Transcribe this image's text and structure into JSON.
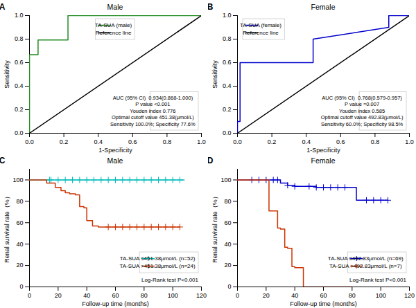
{
  "chart_data": [
    {
      "type": "line",
      "title": "Male",
      "annotations": [
        "A",
        "AUC (95% CI)  0.934(0.868-1.000)",
        "P value <0.001",
        "Youden index 0.776",
        "Optimal cutoff value 451.38(μmol/L)",
        "Sensitivity 100.0%; Specificity 77.6%"
      ],
      "xlabel": "1-Specificity",
      "ylabel": "Sensitivity",
      "xlim": [
        0,
        1
      ],
      "ylim": [
        0,
        1
      ],
      "xticks": [
        {
          "value": 0,
          "label": "0.0"
        },
        0.2,
        0.4,
        0.6,
        0.8,
        {
          "value": 1,
          "label": "1.0"
        }
      ],
      "yticks": [
        {
          "value": 0,
          "label": "0.0"
        },
        0.2,
        0.4,
        0.6,
        0.8,
        {
          "value": 1,
          "label": "1.0"
        }
      ],
      "grid": false,
      "legend": "upper center",
      "series": [
        {
          "name": "TA-SUA (male)",
          "color": "#228B22",
          "x": [
            0.0,
            0.0,
            0.0,
            0.05,
            0.05,
            0.224,
            0.224,
            1.0
          ],
          "values": [
            0.0,
            0.333,
            0.667,
            0.667,
            0.792,
            0.792,
            1.0,
            1.0
          ]
        },
        {
          "name": "Reference line",
          "color": "#000000",
          "x": [
            0,
            1
          ],
          "values": [
            0,
            1
          ]
        }
      ]
    },
    {
      "type": "line",
      "title": "Female",
      "annotations": [
        "B",
        "AUC (95% CI)  0.768(0.579-0.957)",
        "P value =0.007",
        "Youden index 0.585",
        "Optimal cutoff value 492.83(μmol/L)",
        "Sensitivity 60.0%; Specificity 98.5%"
      ],
      "xlabel": "1-Specificity",
      "ylabel": "Sensitivity",
      "xlim": [
        0,
        1
      ],
      "ylim": [
        0,
        1
      ],
      "xticks": [
        {
          "value": 0,
          "label": "0.0"
        },
        0.2,
        0.4,
        0.6,
        0.8,
        {
          "value": 1,
          "label": "1.0"
        }
      ],
      "yticks": [
        {
          "value": 0,
          "label": "0.0"
        },
        0.2,
        0.4,
        0.6,
        0.8,
        {
          "value": 1,
          "label": "1.0"
        }
      ],
      "grid": false,
      "legend": "upper left",
      "series": [
        {
          "name": "TA-SUA (female)",
          "color": "#0000CC",
          "x": [
            0.0,
            0.0,
            0.015,
            0.015,
            0.44,
            0.44,
            0.88,
            0.88,
            1.0
          ],
          "values": [
            0.0,
            0.1,
            0.1,
            0.6,
            0.6,
            0.8,
            0.9,
            1.0,
            1.0
          ]
        },
        {
          "name": "Reference line",
          "color": "#000000",
          "x": [
            0,
            1
          ],
          "values": [
            0,
            1
          ]
        }
      ]
    },
    {
      "type": "step",
      "title": "Male",
      "annotations": [
        "C",
        "Log-Rank test P<0.001"
      ],
      "xlabel": "Follow-up time (months)",
      "ylabel": "Renal survival rate（%）",
      "xlim": [
        0,
        120
      ],
      "ylim": [
        0,
        110
      ],
      "xticks": [
        0,
        20,
        40,
        60,
        80,
        100,
        120
      ],
      "yticks": [
        0,
        20,
        40,
        60,
        80,
        100
      ],
      "grid": false,
      "legend": "lower right",
      "series": [
        {
          "name": "TA-SUA ≤451.38μmol/L (n=52)",
          "color": "#00BBBB",
          "marker": "plus",
          "x": [
            0,
            14,
            15,
            20,
            25,
            30,
            35,
            40,
            45,
            50,
            55,
            60,
            65,
            70,
            75,
            80,
            85,
            90,
            95,
            100,
            105,
            108
          ],
          "values": [
            100,
            100,
            100,
            100,
            100,
            100,
            100,
            100,
            100,
            100,
            100,
            100,
            100,
            100,
            100,
            100,
            100,
            100,
            100,
            100,
            100,
            100
          ],
          "censor_x": [
            14,
            15,
            20,
            25,
            30,
            35,
            40,
            45,
            50,
            55,
            60,
            65,
            70,
            75,
            80,
            85,
            90,
            95,
            100,
            105
          ],
          "censor_values": [
            100,
            100,
            100,
            100,
            100,
            100,
            100,
            100,
            100,
            100,
            100,
            100,
            100,
            100,
            100,
            100,
            100,
            100,
            100,
            100
          ]
        },
        {
          "name": "TA-SUA >451.38μmol/L (n=24)",
          "color": "#CC3300",
          "marker": "plus",
          "x": [
            0,
            12,
            18,
            22,
            25,
            28,
            30,
            32,
            35,
            38,
            40,
            42,
            44,
            46,
            48,
            50,
            55,
            60,
            65,
            70,
            75,
            80,
            85,
            90,
            95,
            100,
            105
          ],
          "values": [
            100,
            97,
            93,
            90,
            88,
            87,
            87,
            86,
            75,
            74,
            62,
            62,
            57,
            57,
            56,
            56,
            56,
            56,
            56,
            56,
            56,
            56,
            56,
            56,
            56,
            56,
            56
          ],
          "censor_x": [
            55,
            60,
            65,
            70,
            75,
            80,
            85,
            90,
            95,
            100,
            105
          ],
          "censor_values": [
            56,
            56,
            56,
            56,
            56,
            56,
            56,
            56,
            56,
            56,
            56
          ]
        }
      ]
    },
    {
      "type": "step",
      "title": "Female",
      "annotations": [
        "D",
        "Log-Rank test P<0.001"
      ],
      "xlabel": "Follow-up time (months)",
      "ylabel": "Renal survival rate（%）",
      "xlim": [
        0,
        120
      ],
      "ylim": [
        0,
        110
      ],
      "xticks": [
        0,
        20,
        40,
        60,
        80,
        100,
        120
      ],
      "yticks": [
        0,
        20,
        40,
        60,
        80,
        100
      ],
      "grid": false,
      "legend": "lower right",
      "series": [
        {
          "name": "TA-SUA ≤492.83μmol/L (n=69)",
          "color": "#0000CC",
          "marker": "plus",
          "x": [
            0,
            10,
            15,
            20,
            25,
            28,
            30,
            35,
            40,
            45,
            50,
            55,
            60,
            65,
            70,
            75,
            80,
            83,
            90,
            95,
            100,
            105
          ],
          "values": [
            100,
            100,
            100,
            100,
            100,
            100,
            97,
            95,
            94,
            94,
            94,
            93,
            93,
            93,
            93,
            93,
            93,
            81,
            81,
            81,
            81,
            81
          ],
          "censor_x": [
            10,
            15,
            20,
            25,
            28,
            35,
            40,
            50,
            55,
            60,
            65,
            70,
            75,
            90,
            95,
            100,
            105
          ],
          "censor_values": [
            100,
            100,
            100,
            100,
            100,
            95,
            94,
            94,
            93,
            93,
            93,
            93,
            93,
            81,
            81,
            81,
            81
          ]
        },
        {
          "name": "TA-SUA >492.83μmol/L (n=7)",
          "color": "#CC3300",
          "marker": "plus",
          "x": [
            0,
            22,
            25,
            28,
            30,
            33,
            35,
            38,
            40,
            43,
            46,
            50,
            55,
            60,
            65,
            70,
            75,
            80
          ],
          "values": [
            100,
            71,
            71,
            55,
            54,
            37,
            36,
            19,
            18,
            18,
            0,
            0,
            0,
            0,
            0,
            0,
            0,
            0
          ],
          "censor_x": [],
          "censor_values": []
        }
      ]
    }
  ]
}
